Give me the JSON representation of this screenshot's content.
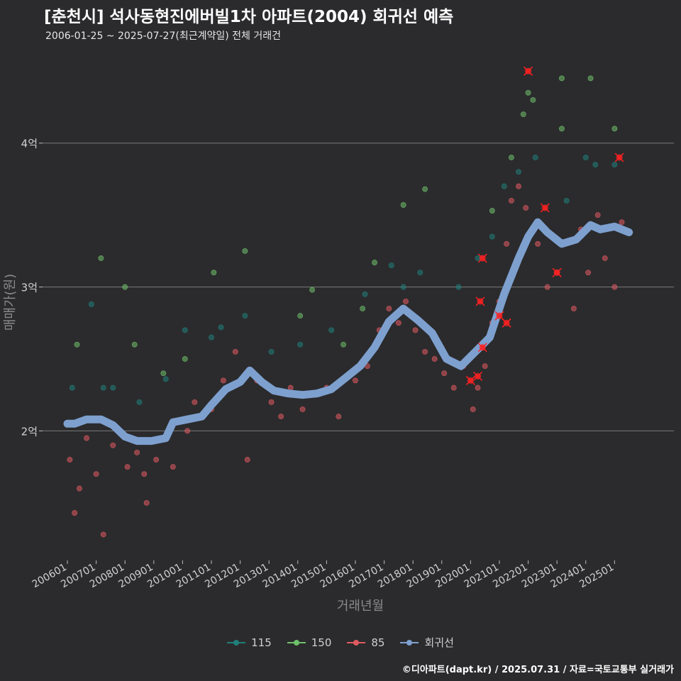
{
  "chart_data": {
    "type": "scatter",
    "title": "[춘천시] 석사동현진에버빌1차 아파트(2004) 회귀선 예측",
    "subtitle": "2006-01-25 ~ 2025-07-27(최근계약일) 전체 거래건",
    "xlabel": "거래년월",
    "ylabel": "매매가(원)",
    "x_range": [
      "2006-01-01",
      "2025-07-31"
    ],
    "ylim": [
      1.1,
      4.6
    ],
    "y_ticks": [
      {
        "value": 2,
        "label": "2억"
      },
      {
        "value": 3,
        "label": "3억"
      },
      {
        "value": 4,
        "label": "4억"
      }
    ],
    "x_ticks": [
      {
        "date": "2006-01",
        "label": "200601"
      },
      {
        "date": "2007-01",
        "label": "200701"
      },
      {
        "date": "2008-01",
        "label": "200801"
      },
      {
        "date": "2009-01",
        "label": "200901"
      },
      {
        "date": "2010-01",
        "label": "201001"
      },
      {
        "date": "2011-01",
        "label": "201101"
      },
      {
        "date": "2012-01",
        "label": "201201"
      },
      {
        "date": "2013-01",
        "label": "201301"
      },
      {
        "date": "2014-01",
        "label": "201401"
      },
      {
        "date": "2015-01",
        "label": "201501"
      },
      {
        "date": "2016-01",
        "label": "201601"
      },
      {
        "date": "2017-01",
        "label": "201701"
      },
      {
        "date": "2018-01",
        "label": "201801"
      },
      {
        "date": "2019-01",
        "label": "201901"
      },
      {
        "date": "2020-01",
        "label": "202001"
      },
      {
        "date": "2021-01",
        "label": "202101"
      },
      {
        "date": "2022-01",
        "label": "202201"
      },
      {
        "date": "2023-01",
        "label": "202301"
      },
      {
        "date": "2024-01",
        "label": "202401"
      },
      {
        "date": "2025-01",
        "label": "202501"
      }
    ],
    "grid": true,
    "legend_position": "bottom",
    "series": [
      {
        "name": "115",
        "color": "#1f7f7a",
        "points": [
          [
            "2006-03",
            2.3
          ],
          [
            "2006-11",
            2.88
          ],
          [
            "2007-04",
            2.3
          ],
          [
            "2007-08",
            2.3
          ],
          [
            "2008-07",
            2.2
          ],
          [
            "2009-06",
            2.36
          ],
          [
            "2010-02",
            2.7
          ],
          [
            "2011-01",
            2.65
          ],
          [
            "2011-05",
            2.72
          ],
          [
            "2012-03",
            2.8
          ],
          [
            "2013-02",
            2.55
          ],
          [
            "2014-02",
            2.6
          ],
          [
            "2015-03",
            2.7
          ],
          [
            "2016-05",
            2.95
          ],
          [
            "2017-04",
            3.15
          ],
          [
            "2017-09",
            3.0
          ],
          [
            "2018-04",
            3.1
          ],
          [
            "2019-08",
            3.0
          ],
          [
            "2020-04",
            3.2
          ],
          [
            "2020-10",
            3.35
          ],
          [
            "2021-03",
            3.7
          ],
          [
            "2021-09",
            3.8
          ],
          [
            "2022-04",
            3.9
          ],
          [
            "2023-05",
            3.6
          ],
          [
            "2024-01",
            3.9
          ],
          [
            "2024-05",
            3.85
          ],
          [
            "2025-01",
            3.85
          ]
        ]
      },
      {
        "name": "150",
        "color": "#6fc06a",
        "points": [
          [
            "2006-05",
            2.6
          ],
          [
            "2007-03",
            3.2
          ],
          [
            "2008-01",
            3.0
          ],
          [
            "2008-05",
            2.6
          ],
          [
            "2009-05",
            2.4
          ],
          [
            "2010-02",
            2.5
          ],
          [
            "2011-02",
            3.1
          ],
          [
            "2012-03",
            3.25
          ],
          [
            "2014-02",
            2.8
          ],
          [
            "2014-07",
            2.98
          ],
          [
            "2015-08",
            2.6
          ],
          [
            "2016-04",
            2.85
          ],
          [
            "2016-09",
            3.17
          ],
          [
            "2017-09",
            3.57
          ],
          [
            "2018-06",
            3.68
          ],
          [
            "2020-10",
            3.53
          ],
          [
            "2021-06",
            3.9
          ],
          [
            "2021-11",
            4.2
          ],
          [
            "2022-01",
            4.35
          ],
          [
            "2022-03",
            4.3
          ],
          [
            "2023-03",
            4.1
          ],
          [
            "2023-03",
            4.45
          ],
          [
            "2024-03",
            4.45
          ],
          [
            "2025-01",
            4.1
          ]
        ]
      },
      {
        "name": "85",
        "color": "#e05a60",
        "points": [
          [
            "2006-02",
            1.8
          ],
          [
            "2006-04",
            1.43
          ],
          [
            "2006-06",
            1.6
          ],
          [
            "2006-09",
            1.95
          ],
          [
            "2007-01",
            1.7
          ],
          [
            "2007-04",
            1.28
          ],
          [
            "2007-08",
            1.9
          ],
          [
            "2008-02",
            1.75
          ],
          [
            "2008-06",
            1.85
          ],
          [
            "2008-09",
            1.7
          ],
          [
            "2008-10",
            1.5
          ],
          [
            "2009-02",
            1.8
          ],
          [
            "2009-05",
            1.95
          ],
          [
            "2009-09",
            1.75
          ],
          [
            "2010-03",
            2.0
          ],
          [
            "2010-06",
            2.2
          ],
          [
            "2011-01",
            2.15
          ],
          [
            "2011-06",
            2.35
          ],
          [
            "2011-11",
            2.55
          ],
          [
            "2012-04",
            1.8
          ],
          [
            "2012-08",
            2.35
          ],
          [
            "2013-02",
            2.2
          ],
          [
            "2013-06",
            2.1
          ],
          [
            "2013-10",
            2.3
          ],
          [
            "2014-03",
            2.15
          ],
          [
            "2014-08",
            2.25
          ],
          [
            "2015-01",
            2.3
          ],
          [
            "2015-06",
            2.1
          ],
          [
            "2016-01",
            2.35
          ],
          [
            "2016-06",
            2.45
          ],
          [
            "2016-11",
            2.7
          ],
          [
            "2017-03",
            2.85
          ],
          [
            "2017-07",
            2.75
          ],
          [
            "2017-10",
            2.9
          ],
          [
            "2018-02",
            2.7
          ],
          [
            "2018-06",
            2.55
          ],
          [
            "2018-10",
            2.5
          ],
          [
            "2019-02",
            2.4
          ],
          [
            "2019-06",
            2.3
          ],
          [
            "2019-10",
            2.45
          ],
          [
            "2020-02",
            2.15
          ],
          [
            "2020-04",
            2.3
          ],
          [
            "2020-07",
            2.45
          ],
          [
            "2020-10",
            2.75
          ],
          [
            "2021-01",
            2.9
          ],
          [
            "2021-04",
            3.3
          ],
          [
            "2021-06",
            3.6
          ],
          [
            "2021-09",
            3.7
          ],
          [
            "2021-12",
            3.55
          ],
          [
            "2022-05",
            3.3
          ],
          [
            "2022-09",
            3.0
          ],
          [
            "2023-01",
            3.1
          ],
          [
            "2023-04",
            3.3
          ],
          [
            "2023-08",
            2.85
          ],
          [
            "2023-11",
            3.4
          ],
          [
            "2024-02",
            3.1
          ],
          [
            "2024-06",
            3.5
          ],
          [
            "2024-09",
            3.2
          ],
          [
            "2025-01",
            3.0
          ],
          [
            "2025-04",
            3.45
          ]
        ]
      },
      {
        "name": "회귀선",
        "color": "#7ea0cf",
        "points": [
          [
            "2006-01",
            2.05
          ],
          [
            "2006-04",
            2.05
          ],
          [
            "2006-09",
            2.08
          ],
          [
            "2007-03",
            2.08
          ],
          [
            "2007-08",
            2.04
          ],
          [
            "2008-01",
            1.96
          ],
          [
            "2008-06",
            1.93
          ],
          [
            "2008-12",
            1.93
          ],
          [
            "2009-06",
            1.95
          ],
          [
            "2009-09",
            2.06
          ],
          [
            "2010-03",
            2.08
          ],
          [
            "2010-09",
            2.1
          ],
          [
            "2011-01",
            2.18
          ],
          [
            "2011-07",
            2.29
          ],
          [
            "2012-01",
            2.34
          ],
          [
            "2012-05",
            2.42
          ],
          [
            "2012-10",
            2.34
          ],
          [
            "2013-03",
            2.28
          ],
          [
            "2013-09",
            2.26
          ],
          [
            "2014-03",
            2.25
          ],
          [
            "2014-09",
            2.26
          ],
          [
            "2015-03",
            2.29
          ],
          [
            "2015-09",
            2.37
          ],
          [
            "2016-03",
            2.45
          ],
          [
            "2016-09",
            2.58
          ],
          [
            "2017-03",
            2.76
          ],
          [
            "2017-09",
            2.85
          ],
          [
            "2018-03",
            2.77
          ],
          [
            "2018-09",
            2.68
          ],
          [
            "2019-03",
            2.5
          ],
          [
            "2019-09",
            2.45
          ],
          [
            "2020-03",
            2.55
          ],
          [
            "2020-09",
            2.65
          ],
          [
            "2021-03",
            2.95
          ],
          [
            "2021-09",
            3.2
          ],
          [
            "2022-01",
            3.35
          ],
          [
            "2022-05",
            3.45
          ],
          [
            "2022-09",
            3.38
          ],
          [
            "2023-03",
            3.3
          ],
          [
            "2023-09",
            3.33
          ],
          [
            "2024-03",
            3.43
          ],
          [
            "2024-07",
            3.4
          ],
          [
            "2025-01",
            3.42
          ],
          [
            "2025-07",
            3.38
          ]
        ]
      }
    ],
    "highlighted_points": [
      [
        "2020-01",
        2.35
      ],
      [
        "2020-04",
        2.38
      ],
      [
        "2020-05",
        2.9
      ],
      [
        "2020-06",
        3.2
      ],
      [
        "2020-06",
        2.58
      ],
      [
        "2021-01",
        2.8
      ],
      [
        "2021-04",
        2.75
      ],
      [
        "2022-01",
        4.5
      ],
      [
        "2022-08",
        3.55
      ],
      [
        "2023-01",
        3.1
      ],
      [
        "2025-03",
        3.9
      ]
    ],
    "highlight_color": "#ff2020",
    "caption": "©디아파트(dapt.kr) / 2025.07.31 / 자료=국토교통부 실거래가"
  }
}
